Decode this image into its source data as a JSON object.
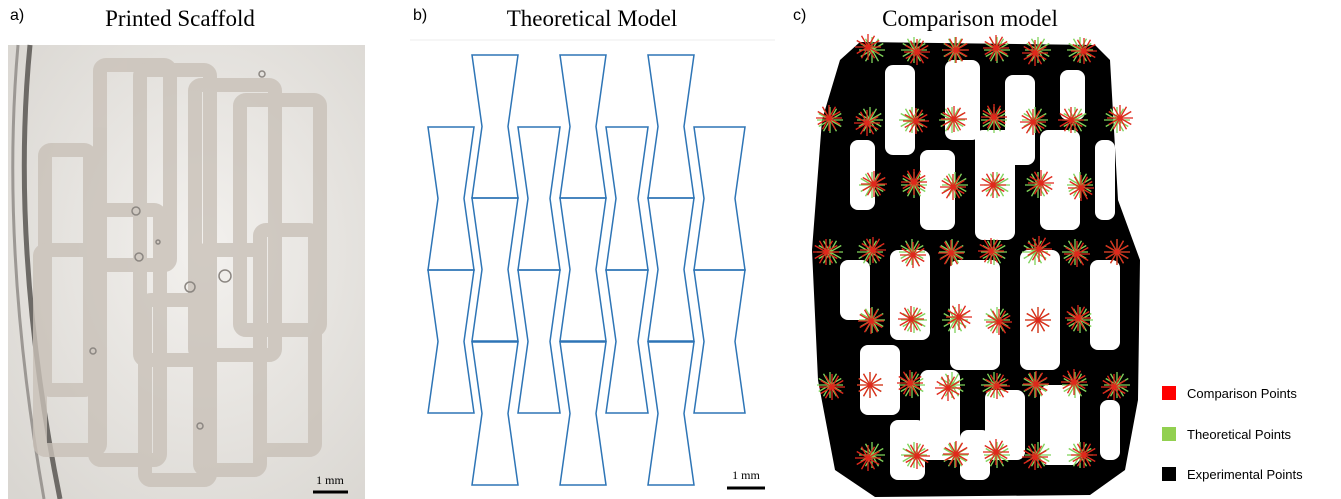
{
  "panels": [
    {
      "label": "a)",
      "title": "Printed Scaffold",
      "scale_bar": "1 mm"
    },
    {
      "label": "b)",
      "title": "Theoretical Model",
      "scale_bar": "1 mm"
    },
    {
      "label": "c)",
      "title": "Comparison model"
    }
  ],
  "legend": [
    "Comparison Points",
    "Theoretical Points",
    "Experimental Points"
  ]
}
